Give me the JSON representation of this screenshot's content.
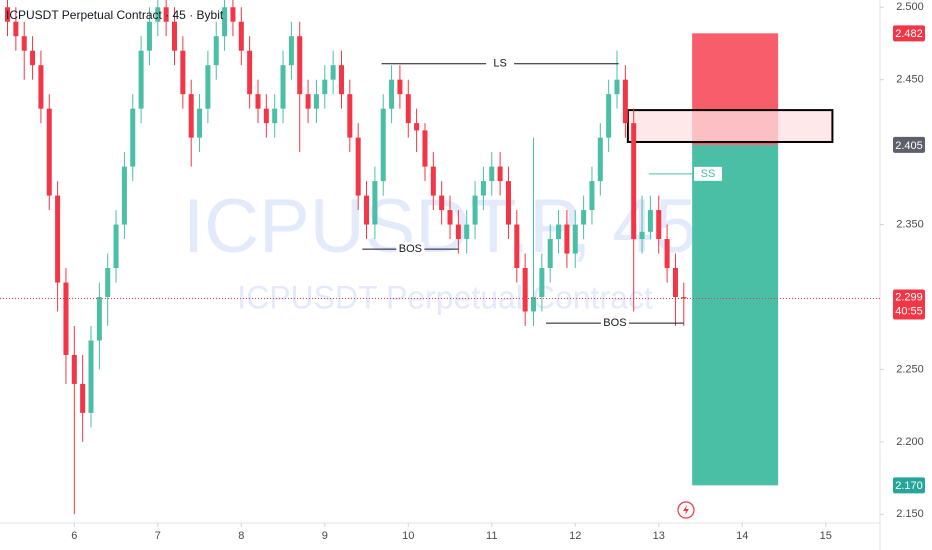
{
  "chart_data": {
    "type": "candlestick",
    "title": "ICPUSDT Perpetual Contract · 45 · Bybit",
    "watermark": "ICPUSDT.P, 45",
    "watermark_subtitle": "ICPUSDT Perpetual Contract",
    "up_color": "#4bbfa5",
    "down_color": "#f23645",
    "xlim": [
      5.11,
      15.65
    ],
    "ylim": [
      2.144,
      2.505
    ],
    "xticks": [
      6,
      7,
      8,
      9,
      10,
      11,
      12,
      13,
      14,
      15
    ],
    "yticks": [
      {
        "value": 2.5,
        "label": "2.500"
      },
      {
        "value": 2.45,
        "label": "2.450"
      },
      {
        "value": 2.35,
        "label": "2.350"
      },
      {
        "value": 2.25,
        "label": "2.250"
      },
      {
        "value": 2.2,
        "label": "2.200"
      },
      {
        "value": 2.15,
        "label": "2.150"
      }
    ],
    "x": [
      5.2,
      5.3,
      5.4,
      5.5,
      5.6,
      5.7,
      5.8,
      5.9,
      6.0,
      6.1,
      6.2,
      6.3,
      6.4,
      6.5,
      6.6,
      6.7,
      6.8,
      6.9,
      7.0,
      7.1,
      7.2,
      7.3,
      7.4,
      7.5,
      7.6,
      7.7,
      7.8,
      7.9,
      8.0,
      8.1,
      8.2,
      8.3,
      8.4,
      8.5,
      8.6,
      8.7,
      8.8,
      8.9,
      9.0,
      9.1,
      9.2,
      9.3,
      9.4,
      9.5,
      9.6,
      9.7,
      9.8,
      9.9,
      10.0,
      10.1,
      10.2,
      10.3,
      10.4,
      10.5,
      10.6,
      10.7,
      10.8,
      10.9,
      11.0,
      11.1,
      11.2,
      11.3,
      11.4,
      11.5,
      11.6,
      11.7,
      11.8,
      11.9,
      12.0,
      12.1,
      12.2,
      12.3,
      12.4,
      12.5,
      12.6,
      12.7,
      12.8,
      12.9,
      13.0,
      13.1,
      13.2,
      13.3
    ],
    "ohlc": [
      [
        2.5,
        2.51,
        2.48,
        2.49
      ],
      [
        2.49,
        2.5,
        2.47,
        2.48
      ],
      [
        2.48,
        2.49,
        2.45,
        2.47
      ],
      [
        2.47,
        2.48,
        2.45,
        2.46
      ],
      [
        2.46,
        2.47,
        2.42,
        2.43
      ],
      [
        2.43,
        2.44,
        2.36,
        2.37
      ],
      [
        2.37,
        2.38,
        2.29,
        2.31
      ],
      [
        2.31,
        2.32,
        2.24,
        2.26
      ],
      [
        2.26,
        2.28,
        2.15,
        2.24
      ],
      [
        2.24,
        2.26,
        2.2,
        2.22
      ],
      [
        2.22,
        2.28,
        2.21,
        2.27
      ],
      [
        2.27,
        2.31,
        2.25,
        2.3
      ],
      [
        2.3,
        2.33,
        2.28,
        2.32
      ],
      [
        2.32,
        2.36,
        2.31,
        2.35
      ],
      [
        2.35,
        2.4,
        2.34,
        2.39
      ],
      [
        2.39,
        2.44,
        2.38,
        2.43
      ],
      [
        2.43,
        2.48,
        2.42,
        2.47
      ],
      [
        2.47,
        2.5,
        2.46,
        2.49
      ],
      [
        2.49,
        2.51,
        2.48,
        2.5
      ],
      [
        2.5,
        2.51,
        2.48,
        2.49
      ],
      [
        2.49,
        2.5,
        2.46,
        2.47
      ],
      [
        2.47,
        2.48,
        2.43,
        2.44
      ],
      [
        2.44,
        2.45,
        2.39,
        2.41
      ],
      [
        2.41,
        2.44,
        2.4,
        2.43
      ],
      [
        2.43,
        2.47,
        2.42,
        2.46
      ],
      [
        2.46,
        2.49,
        2.45,
        2.48
      ],
      [
        2.48,
        2.51,
        2.47,
        2.5
      ],
      [
        2.5,
        2.51,
        2.48,
        2.49
      ],
      [
        2.49,
        2.5,
        2.46,
        2.47
      ],
      [
        2.47,
        2.48,
        2.43,
        2.44
      ],
      [
        2.44,
        2.45,
        2.42,
        2.43
      ],
      [
        2.43,
        2.44,
        2.41,
        2.42
      ],
      [
        2.42,
        2.44,
        2.41,
        2.43
      ],
      [
        2.43,
        2.47,
        2.42,
        2.46
      ],
      [
        2.46,
        2.49,
        2.45,
        2.48
      ],
      [
        2.48,
        2.49,
        2.4,
        2.44
      ],
      [
        2.44,
        2.45,
        2.42,
        2.43
      ],
      [
        2.43,
        2.45,
        2.42,
        2.44
      ],
      [
        2.44,
        2.46,
        2.43,
        2.45
      ],
      [
        2.45,
        2.47,
        2.44,
        2.46
      ],
      [
        2.46,
        2.47,
        2.43,
        2.44
      ],
      [
        2.44,
        2.45,
        2.4,
        2.41
      ],
      [
        2.41,
        2.42,
        2.36,
        2.37
      ],
      [
        2.37,
        2.38,
        2.34,
        2.35
      ],
      [
        2.35,
        2.39,
        2.34,
        2.38
      ],
      [
        2.38,
        2.44,
        2.37,
        2.43
      ],
      [
        2.43,
        2.46,
        2.42,
        2.45
      ],
      [
        2.45,
        2.46,
        2.43,
        2.44
      ],
      [
        2.44,
        2.45,
        2.41,
        2.42
      ],
      [
        2.42,
        2.43,
        2.4,
        2.415
      ],
      [
        2.415,
        2.42,
        2.38,
        2.39
      ],
      [
        2.39,
        2.4,
        2.36,
        2.37
      ],
      [
        2.37,
        2.38,
        2.35,
        2.36
      ],
      [
        2.36,
        2.37,
        2.34,
        2.35
      ],
      [
        2.35,
        2.36,
        2.33,
        2.34
      ],
      [
        2.34,
        2.36,
        2.33,
        2.35
      ],
      [
        2.35,
        2.38,
        2.34,
        2.37
      ],
      [
        2.37,
        2.39,
        2.36,
        2.38
      ],
      [
        2.38,
        2.4,
        2.37,
        2.39
      ],
      [
        2.39,
        2.4,
        2.37,
        2.38
      ],
      [
        2.38,
        2.39,
        2.34,
        2.35
      ],
      [
        2.35,
        2.36,
        2.31,
        2.32
      ],
      [
        2.32,
        2.33,
        2.28,
        2.29
      ],
      [
        2.29,
        2.41,
        2.28,
        2.3
      ],
      [
        2.3,
        2.33,
        2.29,
        2.32
      ],
      [
        2.32,
        2.35,
        2.31,
        2.34
      ],
      [
        2.34,
        2.36,
        2.33,
        2.35
      ],
      [
        2.35,
        2.36,
        2.32,
        2.33
      ],
      [
        2.33,
        2.36,
        2.32,
        2.35
      ],
      [
        2.35,
        2.37,
        2.34,
        2.36
      ],
      [
        2.36,
        2.39,
        2.35,
        2.38
      ],
      [
        2.38,
        2.42,
        2.37,
        2.41
      ],
      [
        2.41,
        2.45,
        2.4,
        2.44
      ],
      [
        2.44,
        2.47,
        2.43,
        2.45
      ],
      [
        2.45,
        2.46,
        2.41,
        2.42
      ],
      [
        2.42,
        2.43,
        2.29,
        2.34
      ],
      [
        2.34,
        2.37,
        2.33,
        2.345
      ],
      [
        2.345,
        2.37,
        2.34,
        2.36
      ],
      [
        2.36,
        2.37,
        2.33,
        2.34
      ],
      [
        2.34,
        2.35,
        2.31,
        2.32
      ],
      [
        2.32,
        2.33,
        2.28,
        2.3
      ],
      [
        2.3,
        2.31,
        2.28,
        2.299
      ]
    ],
    "annotations": [
      {
        "label": "LS",
        "y": 2.461,
        "x": [
          9.68,
          12.52
        ],
        "color": "#131722"
      },
      {
        "label": "BOS",
        "y": 2.333,
        "x": [
          9.45,
          10.6
        ],
        "color": "#131722"
      },
      {
        "label": "BOS",
        "y": 2.282,
        "x": [
          11.65,
          13.3
        ],
        "color": "#131722"
      },
      {
        "label": "SS",
        "y": 2.385,
        "x": [
          12.88,
          14.3
        ],
        "color": "#4bbfa5"
      }
    ],
    "zones": [
      {
        "x": [
          13.4,
          14.43
        ],
        "y": [
          2.17,
          2.405
        ],
        "color": "#4bbfa5"
      },
      {
        "x": [
          13.4,
          14.43
        ],
        "y": [
          2.405,
          2.482
        ],
        "color": "#f75d6a"
      },
      {
        "x": [
          12.63,
          15.08
        ],
        "y": [
          2.407,
          2.429
        ],
        "color": "#fde0e3"
      }
    ],
    "price_labels": [
      {
        "value": 2.482,
        "label": "2.482",
        "color": "#f23645"
      },
      {
        "value": 2.405,
        "label": "2.405",
        "color": "#5d606b"
      },
      {
        "value": 2.17,
        "label": "2.170",
        "color": "#26a69a"
      }
    ],
    "last_price": {
      "value": 2.299,
      "label": "2.299",
      "countdown": "40:55",
      "color": "#f23645"
    }
  }
}
